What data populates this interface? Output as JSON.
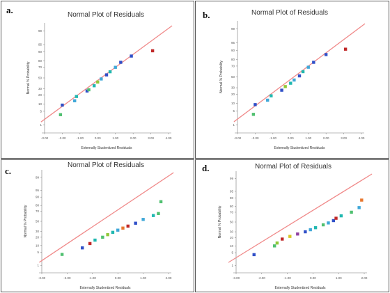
{
  "figure": {
    "panels": [
      {
        "label": "a.",
        "title": "Normal Plot of Residuals"
      },
      {
        "label": "b.",
        "title": "Normal Plot of Residuals"
      },
      {
        "label": "c.",
        "title": "Normal Plot of Residuals"
      },
      {
        "label": "d.",
        "title": "Normal Plot of Residuals"
      }
    ]
  },
  "colors": {
    "fit_line": "#f08a8a",
    "axis": "#777777",
    "points": [
      "#3050c8",
      "#40a8d8",
      "#20b8b0",
      "#50c070",
      "#90c838",
      "#d8c828",
      "#e87830",
      "#c02828",
      "#9040a0"
    ]
  },
  "chart_data": [
    {
      "type": "scatter",
      "title": "Normal Plot of Residuals",
      "xlabel": "Externally Studentized Residuals",
      "ylabel": "Normal % Probability",
      "x_ticks": [
        "-3.00",
        "-2.00",
        "-1.00",
        "0.00",
        "1.00",
        "2.00",
        "3.00",
        "4.00"
      ],
      "y_ticks": [
        "1",
        "5",
        "10",
        "20",
        "30",
        "50",
        "70",
        "80",
        "90",
        "95",
        "99"
      ],
      "xlim": [
        -3,
        4
      ],
      "fit_line": [
        [
          -3.2,
          1.5
        ],
        [
          4.2,
          99.5
        ]
      ],
      "points": [
        {
          "x": -2.0,
          "y": 9,
          "c": "#3050c8"
        },
        {
          "x": -2.1,
          "y": 3.5,
          "c": "#50c070"
        },
        {
          "x": -1.3,
          "y": 13,
          "c": "#40a8d8"
        },
        {
          "x": -1.2,
          "y": 18,
          "c": "#20b8b0"
        },
        {
          "x": -0.6,
          "y": 26,
          "c": "#3050c8"
        },
        {
          "x": -0.5,
          "y": 28,
          "c": "#50c070"
        },
        {
          "x": -0.2,
          "y": 35,
          "c": "#20b8b0"
        },
        {
          "x": 0.0,
          "y": 42,
          "c": "#90c838"
        },
        {
          "x": 0.2,
          "y": 48,
          "c": "#40a8d8"
        },
        {
          "x": 0.5,
          "y": 56,
          "c": "#3050c8"
        },
        {
          "x": 0.7,
          "y": 62,
          "c": "#20b8b0"
        },
        {
          "x": 1.0,
          "y": 70,
          "c": "#40a8d8"
        },
        {
          "x": 1.3,
          "y": 78,
          "c": "#3050c8"
        },
        {
          "x": 1.9,
          "y": 86,
          "c": "#3050c8"
        },
        {
          "x": 3.1,
          "y": 91,
          "c": "#c02828"
        }
      ]
    },
    {
      "type": "scatter",
      "title": "Normal Plot of Residuals",
      "xlabel": "Externally Studentized Residuals",
      "ylabel": "Normal % Probability",
      "x_ticks": [
        "-3.00",
        "-2.00",
        "-1.00",
        "0.00",
        "1.00",
        "2.00",
        "3.00",
        "4.00"
      ],
      "y_ticks": [
        "1",
        "5",
        "10",
        "20",
        "30",
        "50",
        "70",
        "80",
        "90",
        "95",
        "99"
      ],
      "xlim": [
        -3,
        4
      ],
      "fit_line": [
        [
          -3.2,
          1.5
        ],
        [
          4.2,
          99.5
        ]
      ],
      "points": [
        {
          "x": -2.0,
          "y": 9,
          "c": "#3050c8"
        },
        {
          "x": -2.1,
          "y": 3.5,
          "c": "#50c070"
        },
        {
          "x": -1.3,
          "y": 13,
          "c": "#40a8d8"
        },
        {
          "x": -1.1,
          "y": 18,
          "c": "#20b8b0"
        },
        {
          "x": -0.5,
          "y": 26,
          "c": "#3050c8"
        },
        {
          "x": -0.3,
          "y": 32,
          "c": "#90c838"
        },
        {
          "x": 0.0,
          "y": 38,
          "c": "#20b8b0"
        },
        {
          "x": 0.2,
          "y": 44,
          "c": "#40a8d8"
        },
        {
          "x": 0.5,
          "y": 52,
          "c": "#3050c8"
        },
        {
          "x": 0.7,
          "y": 60,
          "c": "#20b8b0"
        },
        {
          "x": 1.0,
          "y": 68,
          "c": "#40a8d8"
        },
        {
          "x": 1.3,
          "y": 76,
          "c": "#3050c8"
        },
        {
          "x": 2.0,
          "y": 86,
          "c": "#3050c8"
        },
        {
          "x": 3.1,
          "y": 91,
          "c": "#c02828"
        }
      ]
    },
    {
      "type": "scatter",
      "title": "Normal Plot of Residuals",
      "xlabel": "Externally Studentized Residuals",
      "ylabel": "Normal % Probability",
      "x_ticks": [
        "-3.00",
        "-2.00",
        "-1.00",
        "0.00",
        "1.00",
        "2.00"
      ],
      "y_ticks": [
        "1",
        "5",
        "10",
        "20",
        "30",
        "50",
        "70",
        "80",
        "90",
        "95",
        "99"
      ],
      "xlim": [
        -3,
        2
      ],
      "fit_line": [
        [
          -3.1,
          1.5
        ],
        [
          2.2,
          99.5
        ]
      ],
      "points": [
        {
          "x": -2.2,
          "y": 4,
          "c": "#50c070"
        },
        {
          "x": -1.4,
          "y": 8,
          "c": "#3050c8"
        },
        {
          "x": -1.1,
          "y": 12,
          "c": "#c02828"
        },
        {
          "x": -0.9,
          "y": 16,
          "c": "#20b8b0"
        },
        {
          "x": -0.6,
          "y": 20,
          "c": "#50c070"
        },
        {
          "x": -0.4,
          "y": 24,
          "c": "#90c838"
        },
        {
          "x": -0.2,
          "y": 28,
          "c": "#20b8b0"
        },
        {
          "x": 0.0,
          "y": 32,
          "c": "#40a8d8"
        },
        {
          "x": 0.2,
          "y": 36,
          "c": "#e87830"
        },
        {
          "x": 0.4,
          "y": 40,
          "c": "#c02828"
        },
        {
          "x": 0.7,
          "y": 46,
          "c": "#3050c8"
        },
        {
          "x": 1.0,
          "y": 54,
          "c": "#40a8d8"
        },
        {
          "x": 1.4,
          "y": 62,
          "c": "#20b8b0"
        },
        {
          "x": 1.6,
          "y": 66,
          "c": "#50c070"
        },
        {
          "x": 1.7,
          "y": 85,
          "c": "#50c070"
        }
      ]
    },
    {
      "type": "scatter",
      "title": "Normal Plot of Residuals",
      "xlabel": "Externally Studentized Residuals",
      "ylabel": "Normal % Probability",
      "x_ticks": [
        "-3.00",
        "-2.00",
        "-1.00",
        "0.00",
        "1.00",
        "2.00"
      ],
      "y_ticks": [
        "1",
        "5",
        "10",
        "20",
        "30",
        "50",
        "70",
        "80",
        "90",
        "95",
        "99"
      ],
      "xlim": [
        -3,
        2
      ],
      "fit_line": [
        [
          -3.3,
          1.5
        ],
        [
          2.3,
          99.5
        ]
      ],
      "points": [
        {
          "x": -2.3,
          "y": 4,
          "c": "#3050c8"
        },
        {
          "x": -1.5,
          "y": 10,
          "c": "#50c070"
        },
        {
          "x": -1.4,
          "y": 13,
          "c": "#90c838"
        },
        {
          "x": -1.2,
          "y": 18,
          "c": "#c02828"
        },
        {
          "x": -0.9,
          "y": 22,
          "c": "#d8c828"
        },
        {
          "x": -0.6,
          "y": 26,
          "c": "#9040a0"
        },
        {
          "x": -0.3,
          "y": 30,
          "c": "#3050c8"
        },
        {
          "x": -0.1,
          "y": 34,
          "c": "#40a8d8"
        },
        {
          "x": 0.1,
          "y": 38,
          "c": "#20b8b0"
        },
        {
          "x": 0.4,
          "y": 44,
          "c": "#50c070"
        },
        {
          "x": 0.6,
          "y": 48,
          "c": "#40a8d8"
        },
        {
          "x": 0.8,
          "y": 53,
          "c": "#3050c8"
        },
        {
          "x": 0.9,
          "y": 58,
          "c": "#c02828"
        },
        {
          "x": 1.1,
          "y": 63,
          "c": "#20b8b0"
        },
        {
          "x": 1.5,
          "y": 70,
          "c": "#50c070"
        },
        {
          "x": 1.8,
          "y": 78,
          "c": "#40a8d8"
        },
        {
          "x": 1.9,
          "y": 88,
          "c": "#e87830"
        }
      ]
    }
  ]
}
